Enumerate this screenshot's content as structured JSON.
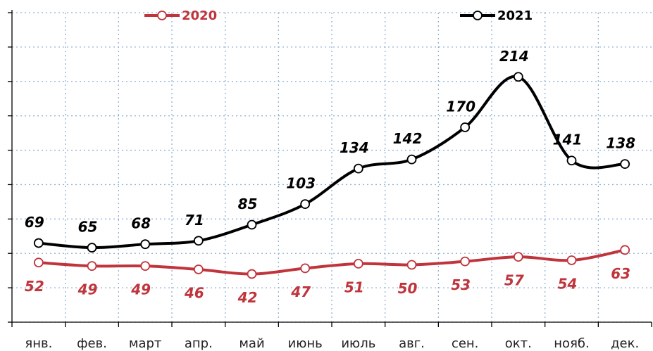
{
  "chart_data": {
    "type": "line",
    "categories": [
      "янв.",
      "фев.",
      "март",
      "апр.",
      "май",
      "июнь",
      "июль",
      "авг.",
      "сен.",
      "окт.",
      "нояб.",
      "дек."
    ],
    "series": [
      {
        "name": "2020",
        "color": "#c0343c",
        "values": [
          52,
          49,
          49,
          46,
          42,
          47,
          51,
          50,
          53,
          57,
          54,
          63
        ]
      },
      {
        "name": "2021",
        "color": "#000000",
        "values": [
          69,
          65,
          68,
          71,
          85,
          103,
          134,
          142,
          170,
          214,
          141,
          138
        ]
      }
    ],
    "ylim": [
      0,
      270
    ],
    "yticks": [
      0,
      30,
      60,
      90,
      120,
      150,
      180,
      210,
      240,
      270
    ],
    "grid": true
  }
}
